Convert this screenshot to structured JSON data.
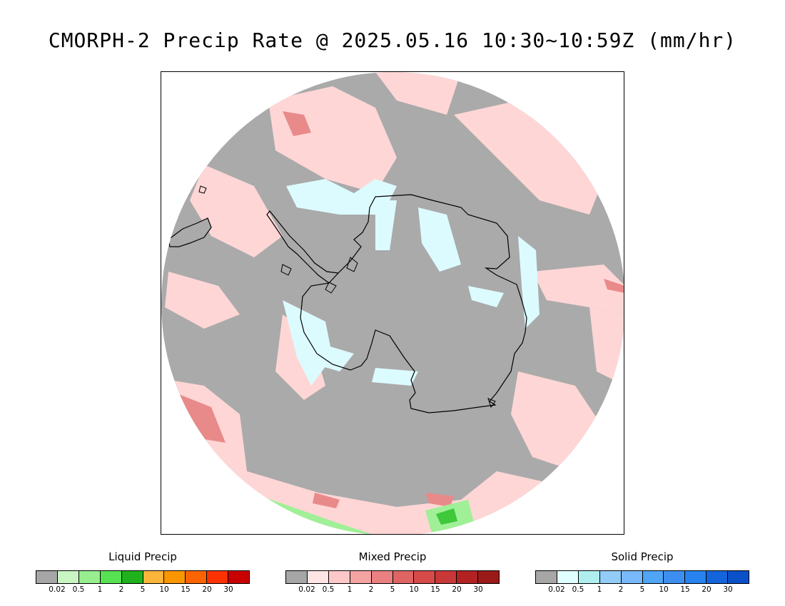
{
  "title": "CMORPH-2 Precip Rate @ 2025.05.16 10:30~10:59Z (mm/hr)",
  "map": {
    "projection": "south-polar-stereographic",
    "background_color": "#aaaaaa",
    "coastline_color": "#000000"
  },
  "legends": [
    {
      "id": "liquid",
      "title": "Liquid Precip",
      "colors": [
        "#a6a6a6",
        "#c8f5c2",
        "#98ee8f",
        "#57e251",
        "#1fb21c",
        "#fbb53b",
        "#fa9600",
        "#fb6400",
        "#fa3200",
        "#c80000"
      ],
      "ticks": [
        "0.02",
        "0.5",
        "1",
        "2",
        "5",
        "10",
        "15",
        "20",
        "30"
      ]
    },
    {
      "id": "mixed",
      "title": "Mixed Precip",
      "colors": [
        "#a6a6a6",
        "#ffe4e4",
        "#ffc8c8",
        "#f4a3a3",
        "#ea8080",
        "#df6464",
        "#d64a4a",
        "#c93838",
        "#b22222",
        "#9a1a1a"
      ],
      "ticks": [
        "0.02",
        "0.5",
        "1",
        "2",
        "5",
        "10",
        "15",
        "20",
        "30"
      ]
    },
    {
      "id": "solid",
      "title": "Solid Precip",
      "colors": [
        "#a6a6a6",
        "#e0ffff",
        "#afeeee",
        "#94ccf8",
        "#78b9fb",
        "#50a5f5",
        "#3c8ff0",
        "#2882f0",
        "#1464dc",
        "#0a50c8"
      ],
      "ticks": [
        "0.02",
        "0.5",
        "1",
        "2",
        "5",
        "10",
        "15",
        "20",
        "30"
      ]
    }
  ]
}
